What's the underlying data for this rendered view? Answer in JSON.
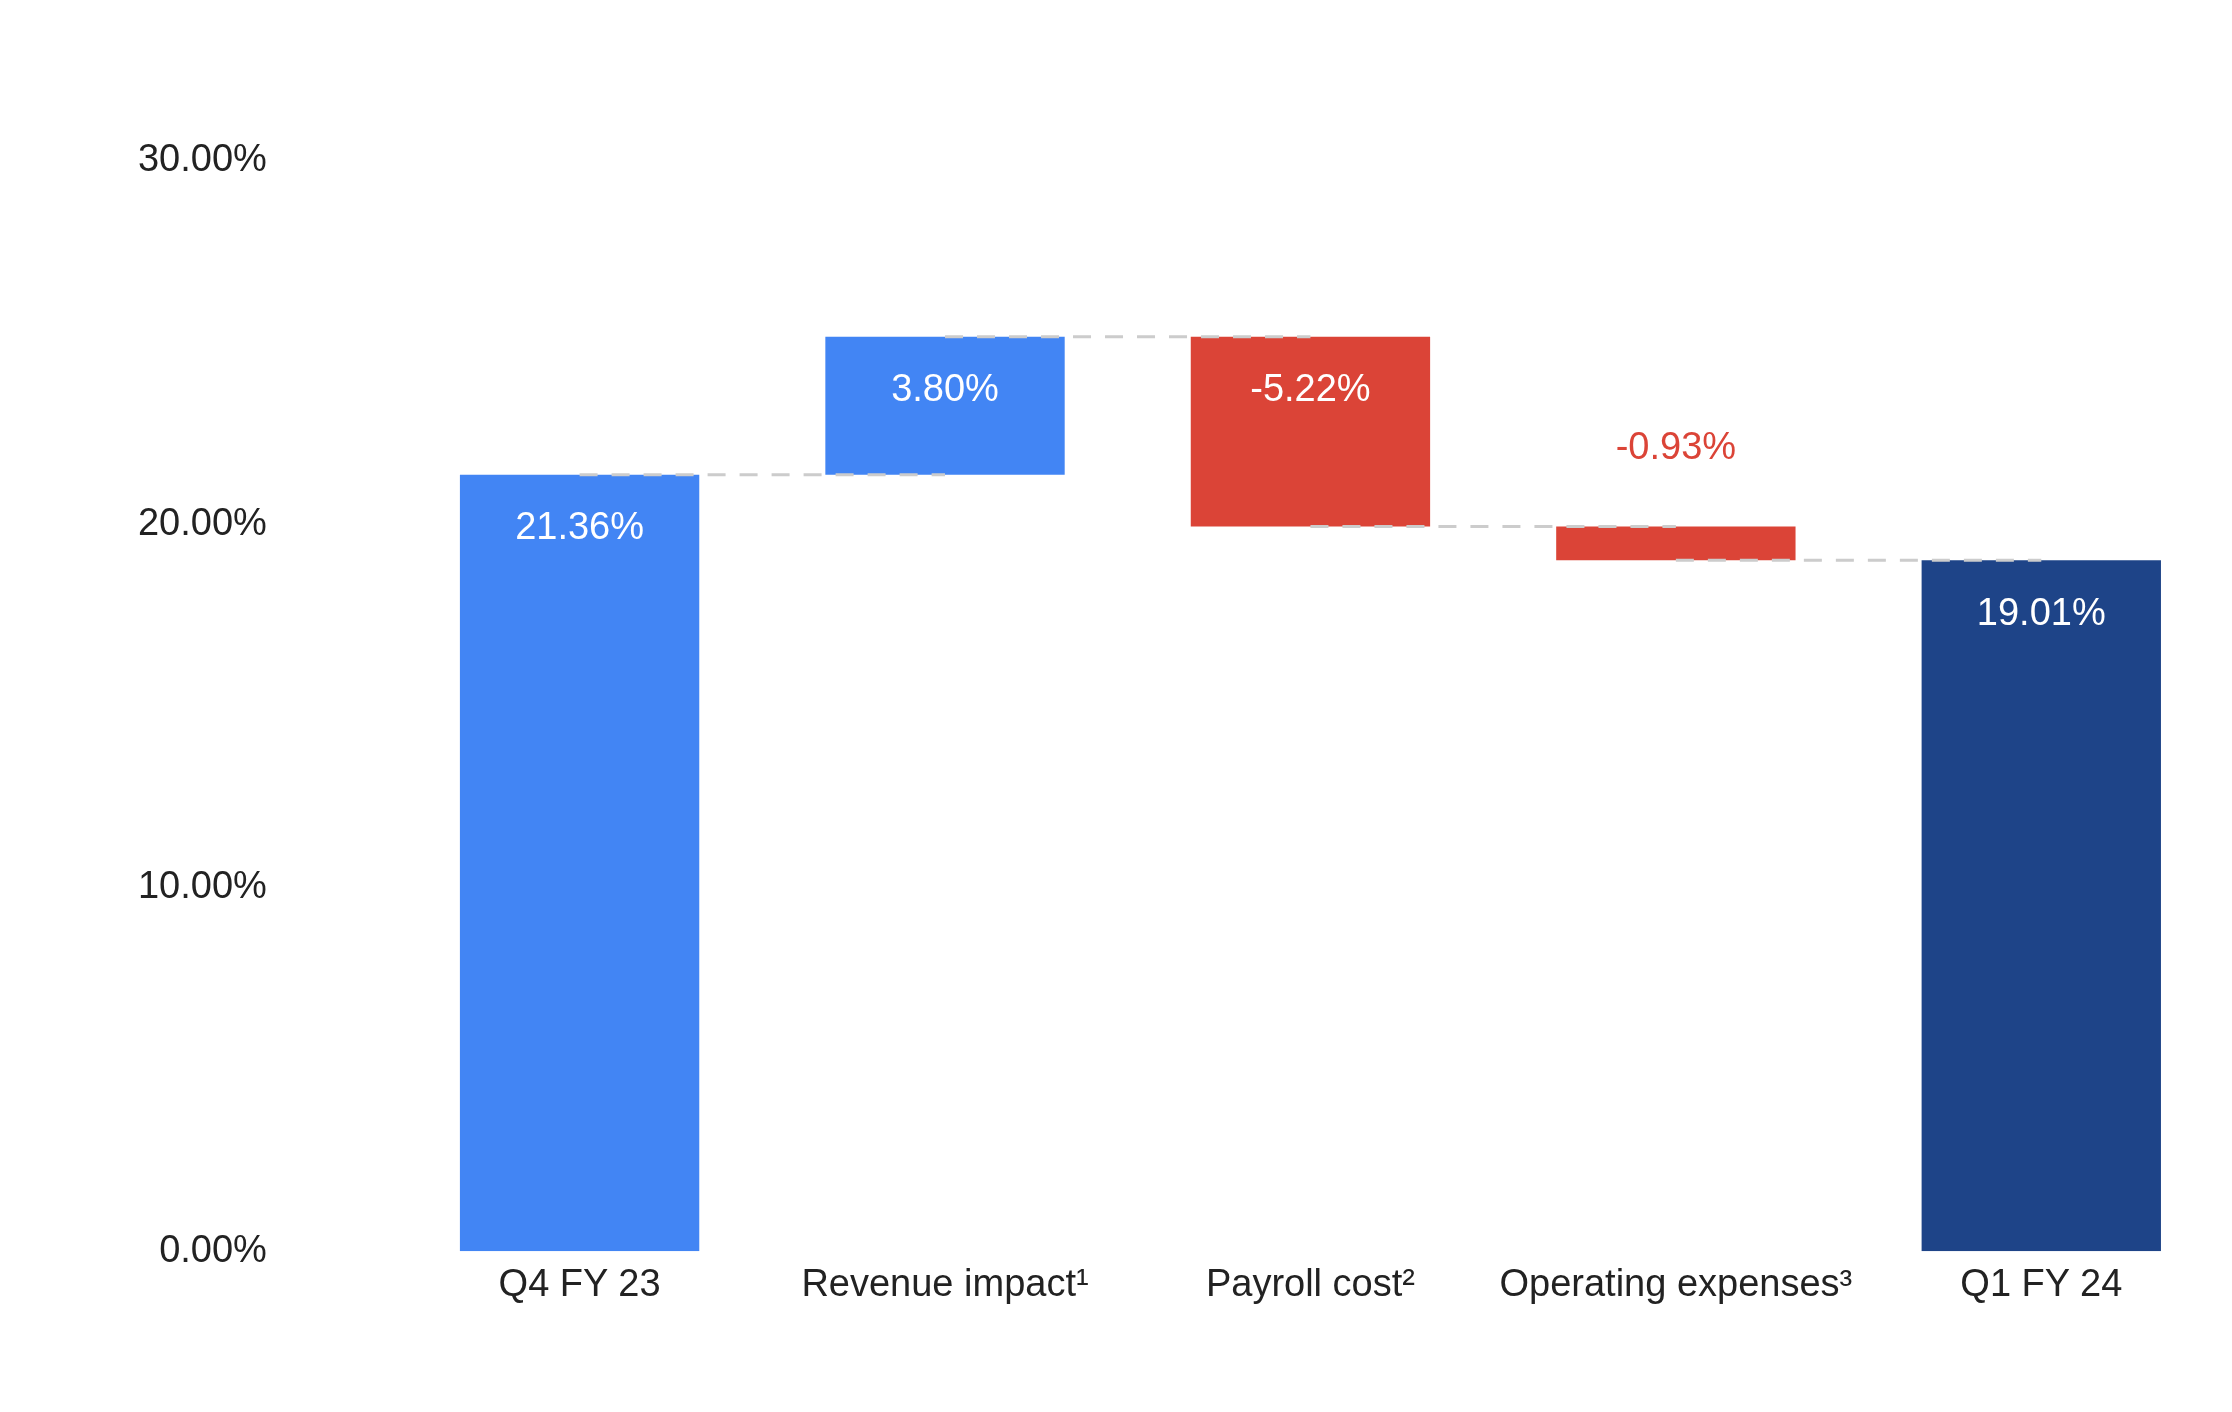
{
  "chart_data": {
    "type": "bar",
    "categories": [
      "Q4 FY 23",
      "Revenue impact¹",
      "Payroll cost²",
      "Operating expenses³",
      "Q1 FY 24"
    ],
    "values": [
      21.36,
      3.8,
      -5.22,
      -0.93,
      19.01
    ],
    "base": [
      0,
      21.36,
      25.16,
      19.94,
      0
    ],
    "colors": [
      "#4285f4",
      "#4285f4",
      "#db4437",
      "#db4437",
      "#1e4488"
    ],
    "value_labels": [
      "21.36%",
      "3.80%",
      "-5.22%",
      "-0.93%",
      "19.01%"
    ],
    "ylim": [
      0,
      30
    ],
    "yticks": [
      {
        "value": 0,
        "label": "0.00%"
      },
      {
        "value": 10,
        "label": "10.00%"
      },
      {
        "value": 20,
        "label": "20.00%"
      },
      {
        "value": 30,
        "label": "30.00%"
      }
    ],
    "series": [
      {
        "type": "line",
        "x": [
          "Q4 FY 23",
          "Revenue impact¹"
        ],
        "values": [
          21.36,
          21.36
        ],
        "color": "#cccccc",
        "line_style": "dashed"
      },
      {
        "type": "line",
        "x": [
          "Revenue impact¹",
          "Payroll cost²"
        ],
        "values": [
          25.16,
          25.16
        ],
        "color": "#cccccc",
        "line_style": "dashed"
      },
      {
        "type": "line",
        "x": [
          "Payroll cost²",
          "Operating expenses³"
        ],
        "values": [
          19.94,
          19.94
        ],
        "color": "#cccccc",
        "line_style": "dashed"
      },
      {
        "type": "line",
        "x": [
          "Operating expenses³",
          "Q1 FY 24"
        ],
        "values": [
          19.01,
          19.01
        ],
        "color": "#cccccc",
        "line_style": "dashed"
      }
    ],
    "grid": false,
    "legend": false,
    "marker": "none"
  }
}
